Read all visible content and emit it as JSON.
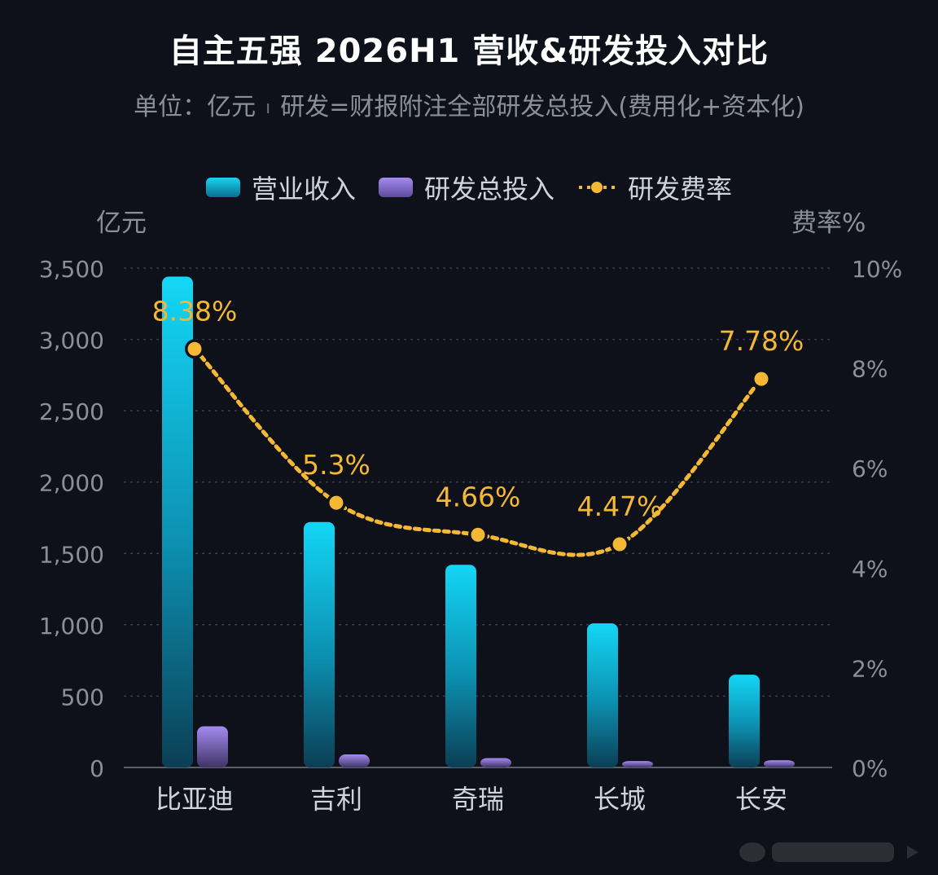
{
  "title": "自主五强 2026H1 营收&研发投入对比",
  "subtitle": {
    "unit": "单位：亿元",
    "separator": "ı",
    "note": "研发=财报附注全部研发总投入(费用化+资本化)"
  },
  "legend": [
    {
      "label": "营业收入",
      "kind": "bar",
      "color": "#19d3f2"
    },
    {
      "label": "研发总投入",
      "kind": "bar",
      "color": "#9f86ea"
    },
    {
      "label": "研发费率",
      "kind": "line",
      "color": "#f4b835"
    }
  ],
  "axis_units": {
    "left": "亿元",
    "right": "费率%"
  },
  "chart_data": {
    "type": "bar",
    "categories": [
      "比亚迪",
      "吉利",
      "奇瑞",
      "长城",
      "长安"
    ],
    "series": [
      {
        "name": "营业收入",
        "type": "bar",
        "axis": "left",
        "values": [
          3440,
          1720,
          1420,
          1010,
          650
        ]
      },
      {
        "name": "研发总投入",
        "type": "bar",
        "axis": "left",
        "values": [
          288,
          91,
          66,
          45,
          51
        ]
      },
      {
        "name": "研发费率",
        "type": "line",
        "axis": "right",
        "values": [
          8.38,
          5.3,
          4.66,
          4.47,
          7.78
        ],
        "labels": [
          "8.38%",
          "5.3%",
          "4.66%",
          "4.47%",
          "7.78%"
        ]
      }
    ],
    "left_axis": {
      "min": 0,
      "max": 3500,
      "ticks": [
        "0",
        "500",
        "1,000",
        "1,500",
        "2,000",
        "2,500",
        "3,000",
        "3,500"
      ]
    },
    "right_axis": {
      "min": 0,
      "max": 10,
      "ticks": [
        "0%",
        "2%",
        "4%",
        "6%",
        "8%",
        "10%"
      ]
    },
    "grid": true,
    "legend_position": "top-center"
  }
}
